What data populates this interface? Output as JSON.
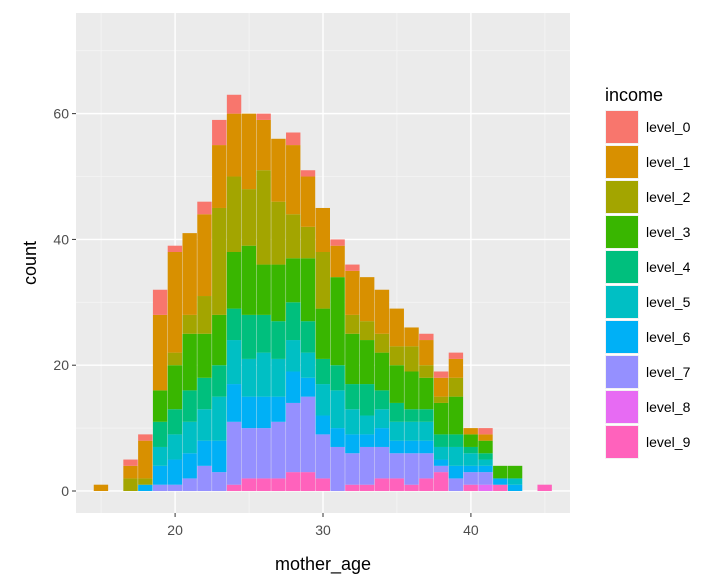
{
  "chart_data": {
    "type": "bar",
    "stacked": true,
    "title": "",
    "xlabel": "mother_age",
    "ylabel": "count",
    "xlim": [
      13.3,
      46.7
    ],
    "ylim": [
      -3.5,
      76.0
    ],
    "binwidth": 1,
    "xticks": [
      20,
      30,
      40
    ],
    "yticks": [
      0,
      20,
      40,
      60
    ],
    "grid": true,
    "background": "#ebebeb",
    "legend": {
      "title": "income",
      "position": "right",
      "labels": [
        "level_0",
        "level_1",
        "level_2",
        "level_3",
        "level_4",
        "level_5",
        "level_6",
        "level_7",
        "level_8",
        "level_9"
      ],
      "colors": [
        "#F8766D",
        "#D89000",
        "#A3A500",
        "#39B600",
        "#00BF7D",
        "#00BFC4",
        "#00B0F6",
        "#9590FF",
        "#E76BF3",
        "#FF62BC"
      ]
    },
    "x": [
      15,
      17,
      18,
      19,
      20,
      21,
      22,
      23,
      24,
      25,
      26,
      27,
      28,
      29,
      30,
      31,
      32,
      33,
      34,
      35,
      36,
      37,
      38,
      39,
      40,
      41,
      42,
      43,
      45
    ],
    "series": [
      {
        "name": "level_0",
        "values": [
          0,
          1,
          1,
          4,
          1,
          0,
          2,
          4,
          3,
          0,
          1,
          0,
          2,
          1,
          0,
          1,
          1,
          0,
          0,
          0,
          0,
          1,
          1,
          1,
          0,
          1,
          0,
          0,
          0
        ]
      },
      {
        "name": "level_1",
        "values": [
          1,
          2,
          6,
          12,
          16,
          13,
          13,
          10,
          10,
          12,
          8,
          10,
          11,
          8,
          7,
          5,
          7,
          7,
          7,
          6,
          3,
          4,
          3,
          3,
          1,
          1,
          0,
          0,
          0
        ]
      },
      {
        "name": "level_2",
        "values": [
          0,
          2,
          1,
          0,
          2,
          3,
          6,
          17,
          12,
          9,
          15,
          10,
          7,
          5,
          9,
          0,
          3,
          3,
          3,
          3,
          4,
          2,
          1,
          3,
          0,
          0,
          0,
          0,
          0
        ]
      },
      {
        "name": "level_3",
        "values": [
          0,
          0,
          0,
          5,
          7,
          9,
          7,
          8,
          9,
          11,
          8,
          9,
          7,
          10,
          8,
          14,
          8,
          7,
          6,
          6,
          6,
          5,
          5,
          6,
          2,
          2,
          2,
          2,
          0
        ]
      },
      {
        "name": "level_4",
        "values": [
          0,
          0,
          0,
          4,
          4,
          5,
          5,
          5,
          5,
          7,
          6,
          6,
          6,
          5,
          4,
          4,
          4,
          5,
          3,
          3,
          2,
          2,
          2,
          2,
          1,
          1,
          0,
          0,
          0
        ]
      },
      {
        "name": "level_5",
        "values": [
          0,
          0,
          0,
          3,
          4,
          5,
          5,
          7,
          7,
          6,
          7,
          6,
          5,
          4,
          5,
          6,
          4,
          3,
          3,
          3,
          3,
          3,
          2,
          3,
          2,
          1,
          0,
          1,
          0
        ]
      },
      {
        "name": "level_6",
        "values": [
          0,
          0,
          1,
          3,
          4,
          4,
          4,
          5,
          6,
          5,
          5,
          4,
          5,
          3,
          3,
          3,
          3,
          2,
          3,
          2,
          2,
          2,
          1,
          2,
          1,
          1,
          1,
          1,
          0
        ]
      },
      {
        "name": "level_7",
        "values": [
          0,
          0,
          0,
          1,
          1,
          2,
          4,
          3,
          10,
          8,
          8,
          9,
          11,
          12,
          7,
          7,
          5,
          6,
          5,
          4,
          5,
          4,
          1,
          2,
          2,
          2,
          0,
          0,
          0
        ]
      },
      {
        "name": "level_8",
        "values": [
          0,
          0,
          0,
          0,
          0,
          0,
          0,
          0,
          0,
          0,
          0,
          0,
          0,
          0,
          0,
          0,
          0,
          0,
          0,
          0,
          0,
          0,
          0,
          0,
          0,
          1,
          0,
          0,
          0
        ]
      },
      {
        "name": "level_9",
        "values": [
          0,
          0,
          0,
          0,
          0,
          0,
          0,
          0,
          1,
          2,
          2,
          2,
          3,
          3,
          2,
          0,
          1,
          1,
          2,
          2,
          1,
          2,
          3,
          0,
          1,
          0,
          1,
          0,
          1
        ]
      }
    ]
  }
}
